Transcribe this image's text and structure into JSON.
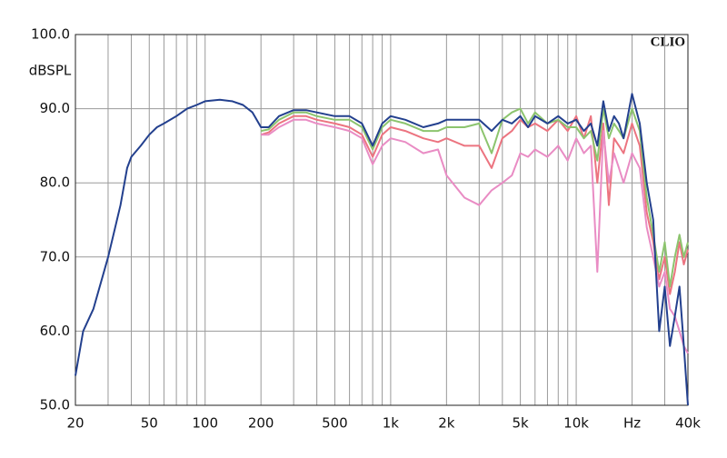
{
  "chart_data": {
    "type": "line",
    "ylabel": "dBSPL",
    "annotation": "CLIO",
    "xscale": "log",
    "grid": true,
    "xlim": [
      20,
      40000
    ],
    "ylim": [
      50,
      100
    ],
    "xticks": [
      20,
      50,
      100,
      200,
      500,
      {
        "value": 1000,
        "label": "1k"
      },
      {
        "value": 2000,
        "label": "2k"
      },
      {
        "value": 5000,
        "label": "5k"
      },
      {
        "value": 10000,
        "label": "10k"
      },
      {
        "value": 20000,
        "label": "Hz"
      },
      {
        "value": 40000,
        "label": "40k"
      }
    ],
    "xgrid": [
      20,
      30,
      40,
      50,
      60,
      70,
      80,
      90,
      100,
      200,
      300,
      400,
      500,
      600,
      700,
      800,
      900,
      1000,
      2000,
      3000,
      4000,
      5000,
      6000,
      7000,
      8000,
      9000,
      10000,
      20000,
      30000,
      40000
    ],
    "yticks": [
      {
        "value": 50,
        "label": "50.0"
      },
      {
        "value": 60,
        "label": "60.0"
      },
      {
        "value": 70,
        "label": "70.0"
      },
      {
        "value": 80,
        "label": "80.0"
      },
      {
        "value": 90,
        "label": "90.0"
      },
      {
        "value": 100,
        "label": "100.0"
      }
    ],
    "x": [
      20,
      22,
      25,
      30,
      35,
      38,
      40,
      45,
      50,
      55,
      60,
      70,
      80,
      90,
      100,
      120,
      140,
      160,
      180,
      200,
      220,
      250,
      300,
      350,
      400,
      500,
      600,
      700,
      800,
      900,
      1000,
      1200,
      1500,
      1800,
      2000,
      2500,
      3000,
      3500,
      4000,
      4500,
      5000,
      5500,
      6000,
      7000,
      8000,
      9000,
      10000,
      11000,
      12000,
      13000,
      14000,
      15000,
      16000,
      17000,
      18000,
      20000,
      22000,
      24000,
      26000,
      28000,
      30000,
      32000,
      34000,
      36000,
      38000,
      40000
    ],
    "series": [
      {
        "color": "#ec7480",
        "values": [
          null,
          null,
          null,
          null,
          null,
          null,
          null,
          null,
          null,
          null,
          null,
          null,
          null,
          null,
          null,
          null,
          null,
          null,
          null,
          86.5,
          86.8,
          88,
          89,
          89,
          88.5,
          88,
          87.5,
          86.5,
          83.5,
          86.5,
          87.5,
          87,
          86,
          85.5,
          86,
          85,
          85,
          82,
          86,
          87,
          88.5,
          87.5,
          88,
          87,
          88.5,
          87,
          89,
          86,
          89,
          80,
          88,
          77,
          86,
          85,
          84,
          88,
          85,
          76,
          72,
          67,
          70,
          65,
          68,
          72,
          69,
          71
        ]
      },
      {
        "color": "#e98cc4",
        "values": [
          null,
          null,
          null,
          null,
          null,
          null,
          null,
          null,
          null,
          null,
          null,
          null,
          null,
          null,
          null,
          null,
          null,
          null,
          null,
          86.5,
          86.5,
          87.5,
          88.5,
          88.5,
          88,
          87.5,
          87,
          86,
          82.5,
          85,
          86,
          85.5,
          84,
          84.5,
          81,
          78,
          77,
          79,
          80,
          81,
          84,
          83.5,
          84.5,
          83.5,
          85,
          83,
          86,
          84,
          85,
          68,
          87,
          80,
          84,
          82,
          80,
          84,
          82,
          74,
          70,
          66,
          68,
          63,
          62,
          60,
          58,
          57
        ]
      },
      {
        "color": "#8cc46e",
        "values": [
          null,
          null,
          null,
          null,
          null,
          null,
          null,
          null,
          null,
          null,
          null,
          null,
          null,
          null,
          null,
          null,
          null,
          null,
          null,
          87,
          87.2,
          88.5,
          89.5,
          89.5,
          89,
          88.5,
          88.5,
          87.5,
          84.5,
          87.5,
          88.5,
          88,
          87,
          87,
          87.5,
          87.5,
          88,
          84,
          88.5,
          89.5,
          90,
          88,
          89.5,
          88,
          88.5,
          87.5,
          87.5,
          86,
          87,
          83,
          90,
          86,
          88,
          87,
          86,
          90,
          87,
          78,
          73,
          68,
          72,
          66,
          70,
          73,
          70,
          72
        ]
      },
      {
        "color": "#23408e",
        "values": [
          54,
          60,
          63,
          70,
          77,
          82,
          83.5,
          85,
          86.5,
          87.5,
          88,
          89,
          90,
          90.5,
          91,
          91.2,
          91,
          90.5,
          89.5,
          87.5,
          87.5,
          89,
          89.8,
          89.8,
          89.5,
          89,
          89,
          88,
          85,
          88,
          89,
          88.5,
          87.5,
          88,
          88.5,
          88.5,
          88.5,
          87,
          88.5,
          88,
          89,
          87.5,
          89,
          88,
          89,
          88,
          88.5,
          87,
          88,
          85,
          91,
          87,
          89,
          88,
          86,
          92,
          88,
          80,
          75,
          60,
          66,
          58,
          62,
          66,
          58,
          50
        ]
      }
    ]
  }
}
